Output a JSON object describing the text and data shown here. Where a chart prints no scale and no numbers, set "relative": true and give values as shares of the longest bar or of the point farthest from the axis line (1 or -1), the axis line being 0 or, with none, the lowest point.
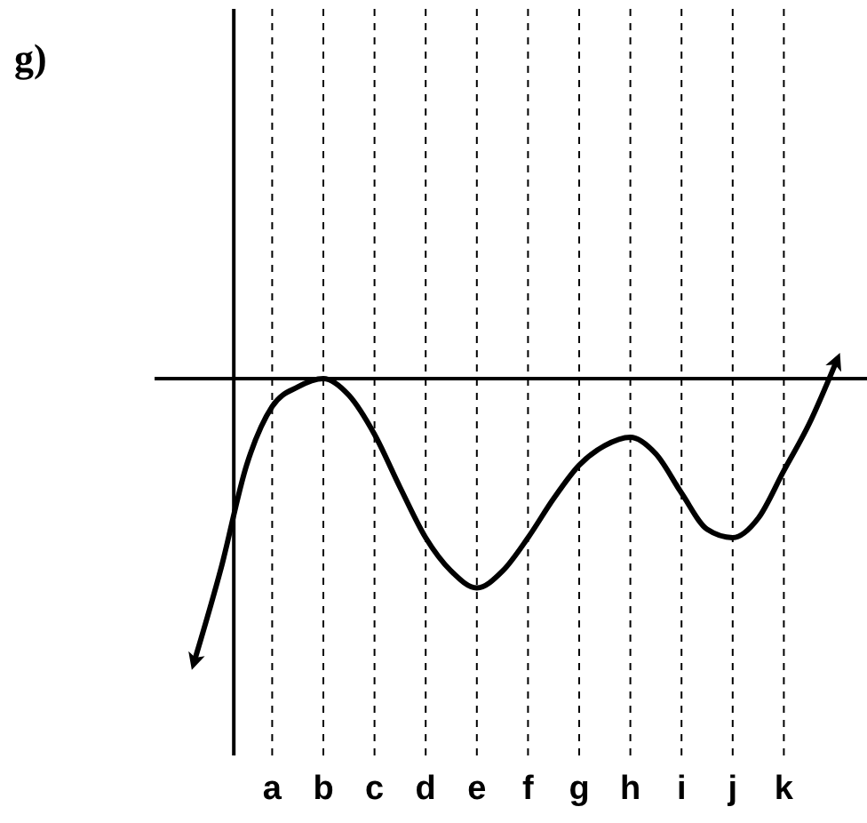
{
  "chart_data": {
    "type": "line",
    "title": "g)",
    "relative": true,
    "grid": "x",
    "categories": [
      null,
      null,
      null,
      "a",
      null,
      "b",
      null,
      "c",
      null,
      "d",
      null,
      "e",
      null,
      "f",
      null,
      "g",
      null,
      "h",
      null,
      "i",
      null,
      "j",
      null,
      "k",
      null,
      null
    ],
    "series": [
      {
        "color": "#000000",
        "values": [
          -1.0,
          -0.68,
          -0.31,
          -0.1,
          -0.03,
          0,
          -0.06,
          -0.2,
          -0.39,
          -0.57,
          -0.69,
          -0.75,
          -0.69,
          -0.57,
          -0.43,
          -0.31,
          -0.24,
          -0.21,
          -0.27,
          -0.41,
          -0.54,
          -0.57,
          -0.5,
          -0.33,
          -0.16,
          0.05
        ]
      }
    ]
  }
}
